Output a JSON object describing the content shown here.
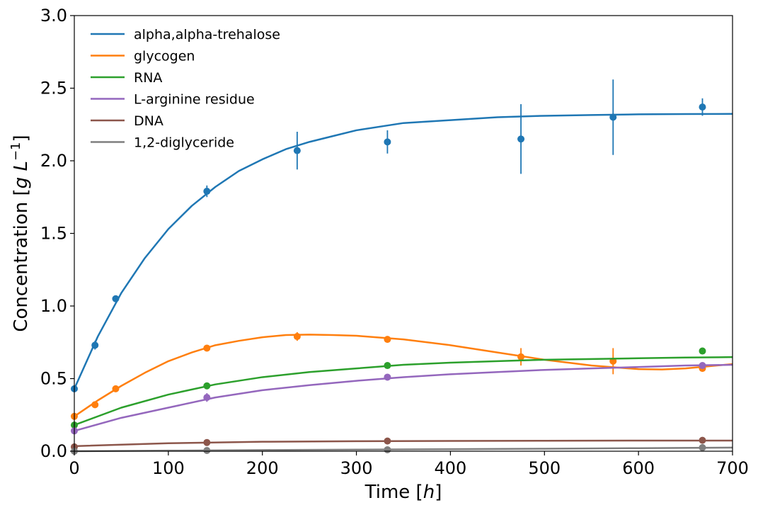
{
  "chart_data": {
    "type": "line",
    "xlabel_text": "Time [",
    "xlabel_var": "h",
    "xlabel_close": "]",
    "ylabel_text": "Concentration [",
    "ylabel_var": "g L",
    "ylabel_exp": "−1",
    "ylabel_close": "]",
    "xlim": [
      0,
      700
    ],
    "ylim": [
      0,
      3.0
    ],
    "xticks": [
      0,
      100,
      200,
      300,
      400,
      500,
      600,
      700
    ],
    "xtick_labels": [
      "0",
      "100",
      "200",
      "300",
      "400",
      "500",
      "600",
      "700"
    ],
    "yticks": [
      0,
      0.5,
      1.0,
      1.5,
      2.0,
      2.5,
      3.0
    ],
    "ytick_labels": [
      "0.0",
      "0.5",
      "1.0",
      "1.5",
      "2.0",
      "2.5",
      "3.0"
    ],
    "grid": false,
    "legend_position": "top-left",
    "series": [
      {
        "name": "alpha,alpha-trehalose",
        "color": "#1f77b4",
        "points": [
          {
            "x": 0,
            "y": 0.43,
            "err": 0.01
          },
          {
            "x": 22,
            "y": 0.73,
            "err": 0.03
          },
          {
            "x": 44,
            "y": 1.05,
            "err": 0.02
          },
          {
            "x": 141,
            "y": 1.79,
            "err": 0.04
          },
          {
            "x": 237,
            "y": 2.07,
            "err": 0.13
          },
          {
            "x": 333,
            "y": 2.13,
            "err": 0.08
          },
          {
            "x": 475,
            "y": 2.15,
            "err": 0.24
          },
          {
            "x": 573,
            "y": 2.3,
            "err": 0.26
          },
          {
            "x": 668,
            "y": 2.37,
            "err": 0.06
          }
        ],
        "curve_x": [
          0,
          25,
          50,
          75,
          100,
          125,
          150,
          175,
          200,
          225,
          250,
          275,
          300,
          350,
          400,
          450,
          500,
          550,
          600,
          650,
          700
        ],
        "curve_y": [
          0.43,
          0.79,
          1.09,
          1.33,
          1.53,
          1.69,
          1.82,
          1.93,
          2.01,
          2.08,
          2.13,
          2.17,
          2.21,
          2.26,
          2.28,
          2.3,
          2.31,
          2.315,
          2.32,
          2.322,
          2.323
        ]
      },
      {
        "name": "glycogen",
        "color": "#ff7f0e",
        "points": [
          {
            "x": 0,
            "y": 0.24,
            "err": 0.01
          },
          {
            "x": 22,
            "y": 0.32,
            "err": 0.02
          },
          {
            "x": 44,
            "y": 0.43,
            "err": 0.01
          },
          {
            "x": 141,
            "y": 0.71,
            "err": 0.01
          },
          {
            "x": 237,
            "y": 0.79,
            "err": 0.03
          },
          {
            "x": 333,
            "y": 0.77,
            "err": 0.02
          },
          {
            "x": 475,
            "y": 0.65,
            "err": 0.06
          },
          {
            "x": 573,
            "y": 0.62,
            "err": 0.09
          },
          {
            "x": 668,
            "y": 0.57,
            "err": 0.01
          }
        ],
        "curve_x": [
          0,
          25,
          50,
          75,
          100,
          125,
          150,
          175,
          200,
          225,
          250,
          275,
          300,
          350,
          400,
          450,
          500,
          550,
          600,
          625,
          650,
          700
        ],
        "curve_y": [
          0.24,
          0.35,
          0.45,
          0.54,
          0.62,
          0.68,
          0.73,
          0.76,
          0.785,
          0.8,
          0.803,
          0.8,
          0.795,
          0.77,
          0.73,
          0.68,
          0.63,
          0.59,
          0.565,
          0.563,
          0.57,
          0.6
        ]
      },
      {
        "name": "RNA",
        "color": "#2ca02c",
        "points": [
          {
            "x": 0,
            "y": 0.18,
            "err": 0.01
          },
          {
            "x": 141,
            "y": 0.45,
            "err": 0.01
          },
          {
            "x": 333,
            "y": 0.59,
            "err": 0.01
          },
          {
            "x": 668,
            "y": 0.69,
            "err": 0.02
          }
        ],
        "curve_x": [
          0,
          50,
          100,
          150,
          200,
          250,
          300,
          350,
          400,
          450,
          500,
          550,
          600,
          650,
          700
        ],
        "curve_y": [
          0.18,
          0.3,
          0.39,
          0.46,
          0.51,
          0.545,
          0.57,
          0.595,
          0.61,
          0.62,
          0.63,
          0.635,
          0.64,
          0.645,
          0.648
        ]
      },
      {
        "name": "L-arginine residue",
        "color": "#9467bd",
        "points": [
          {
            "x": 0,
            "y": 0.14,
            "err": 0.01
          },
          {
            "x": 141,
            "y": 0.37,
            "err": 0.03
          },
          {
            "x": 333,
            "y": 0.51,
            "err": 0.01
          },
          {
            "x": 668,
            "y": 0.59,
            "err": 0.01
          }
        ],
        "curve_x": [
          0,
          50,
          100,
          150,
          200,
          250,
          300,
          350,
          400,
          450,
          500,
          550,
          600,
          650,
          700
        ],
        "curve_y": [
          0.14,
          0.23,
          0.3,
          0.37,
          0.42,
          0.455,
          0.485,
          0.51,
          0.53,
          0.545,
          0.56,
          0.57,
          0.58,
          0.59,
          0.595
        ]
      },
      {
        "name": "DNA",
        "color": "#8c564b",
        "points": [
          {
            "x": 0,
            "y": 0.03,
            "err": 0.005
          },
          {
            "x": 141,
            "y": 0.06,
            "err": 0.005
          },
          {
            "x": 333,
            "y": 0.07,
            "err": 0.005
          },
          {
            "x": 668,
            "y": 0.075,
            "err": 0.005
          }
        ],
        "curve_x": [
          0,
          100,
          200,
          300,
          400,
          500,
          600,
          700
        ],
        "curve_y": [
          0.035,
          0.055,
          0.065,
          0.069,
          0.071,
          0.072,
          0.073,
          0.073
        ]
      },
      {
        "name": "1,2-diglyceride",
        "color": "#7f7f7f",
        "points": [
          {
            "x": 0,
            "y": 0.0,
            "err": 0.003
          },
          {
            "x": 141,
            "y": 0.005,
            "err": 0.003
          },
          {
            "x": 333,
            "y": 0.01,
            "err": 0.003
          },
          {
            "x": 668,
            "y": 0.025,
            "err": 0.003
          }
        ],
        "curve_x": [
          0,
          100,
          200,
          300,
          400,
          500,
          600,
          700
        ],
        "curve_y": [
          0.0,
          0.004,
          0.008,
          0.011,
          0.014,
          0.017,
          0.021,
          0.025
        ]
      }
    ]
  }
}
